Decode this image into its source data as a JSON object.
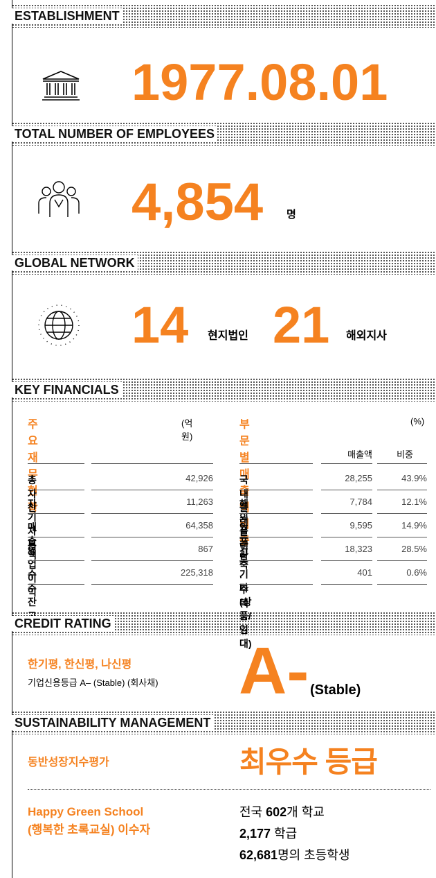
{
  "establishment": {
    "heading": "ESTABLISHMENT",
    "value": "1977.08.01"
  },
  "employees": {
    "heading": "TOTAL NUMBER  OF EMPLOYEES",
    "value": "4,854",
    "unit": "명"
  },
  "network": {
    "heading": "GLOBAL NETWORK",
    "items": [
      {
        "value": "14",
        "label": "현지법인"
      },
      {
        "value": "21",
        "label": "해외지사"
      }
    ]
  },
  "financials": {
    "heading": "KEY FINANCIALS",
    "left": {
      "title": "주요재무현황",
      "unit": "(억 원)",
      "rows": [
        [
          "총자산",
          "42,926"
        ],
        [
          "자기자본",
          "11,263"
        ],
        [
          "매출액",
          "64,358"
        ],
        [
          "영업이익",
          "867"
        ],
        [
          "수주잔고",
          "225,318"
        ]
      ]
    },
    "right": {
      "title": "부문별 매출액 비중",
      "unit": "(%)",
      "columns": [
        "매출액",
        "비중"
      ],
      "rows": [
        [
          "국내플랜트",
          "28,255",
          "43.9%"
        ],
        [
          "해외플랜트",
          "7,784",
          "12.1%"
        ],
        [
          "인프라",
          "9,595",
          "14.9%"
        ],
        [
          "건축 · 주택",
          "18,323",
          "28.5%"
        ],
        [
          "기타(상품/임대)",
          "401",
          "0.6%"
        ]
      ]
    }
  },
  "credit": {
    "heading": "CREDIT RATING",
    "agencies": "한기평, 한신평, 나신평",
    "description": "기업신용등급 A– (Stable) (회사채)",
    "grade": "A-",
    "outlook": "(Stable)"
  },
  "sustainability": {
    "heading": "SUSTAINABILITY MANAGEMENT",
    "evaluation": "동반성장지수평가",
    "result": "최우수 등급",
    "program": [
      "Happy Green School",
      "(행복한 초록교실) 이수자"
    ],
    "lines": [
      [
        "전국",
        "602",
        "개 학교"
      ],
      [
        "2,177",
        "학급"
      ],
      [
        "62,681",
        "명의 초등학생"
      ]
    ]
  }
}
